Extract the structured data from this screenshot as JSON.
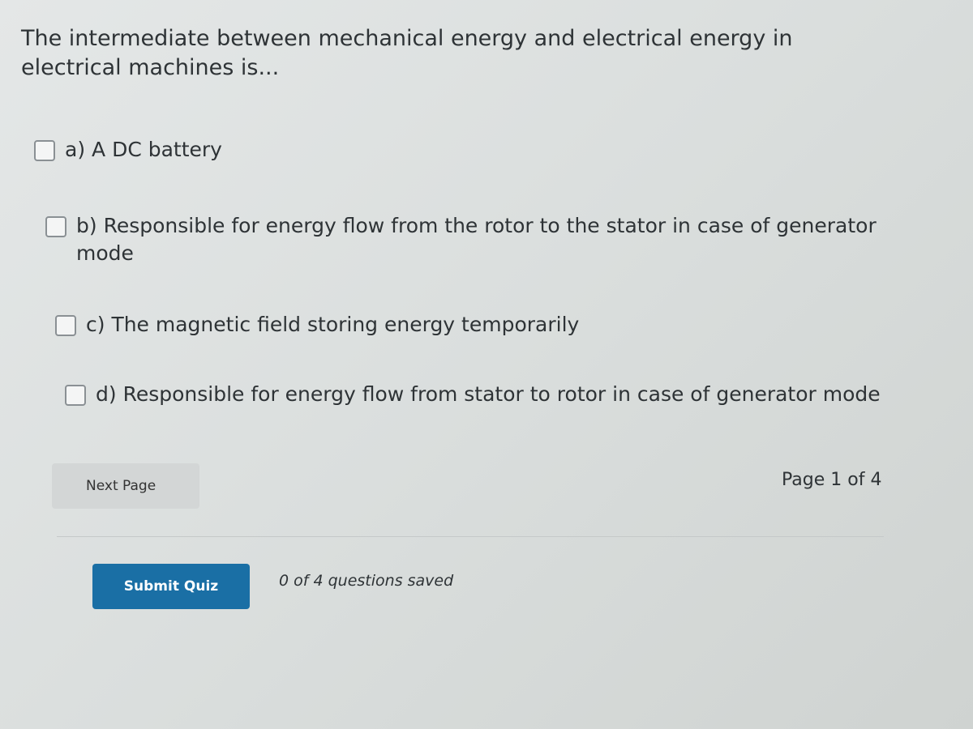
{
  "question": "The intermediate between mechanical energy and electrical energy in electrical machines is...",
  "options": [
    "a) A DC battery",
    "b) Responsible for energy flow from the rotor to the stator in case of generator mode",
    "c) The magnetic field storing energy temporarily",
    "d) Responsible for energy flow from stator to rotor in case of generator mode"
  ],
  "next_button": "Next Page",
  "page_indicator": "Page 1 of 4",
  "submit_button": "Submit Quiz",
  "save_status": "0 of 4 questions saved"
}
